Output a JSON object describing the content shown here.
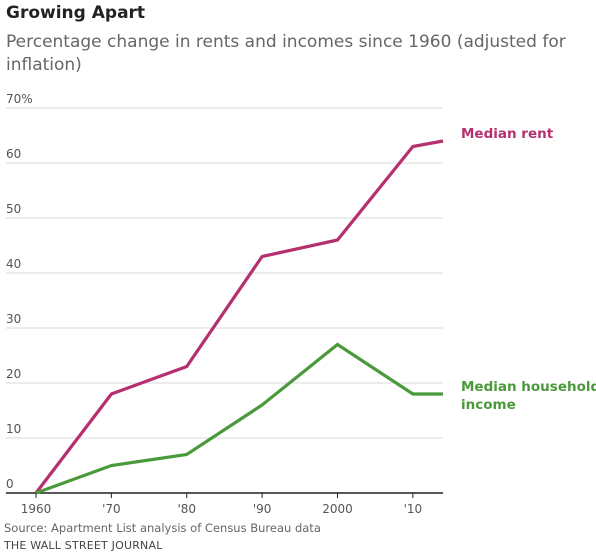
{
  "header": {
    "title": "Growing Apart",
    "subtitle": "Percentage change in rents and incomes since 1960 (adjusted for inflation)"
  },
  "footer": {
    "source": "Source: Apartment List analysis of Census Bureau data",
    "credit": "THE WALL STREET JOURNAL"
  },
  "colors": {
    "rent": "#b5306f",
    "income": "#4a9a3c",
    "grid": "#d9d9d9",
    "axis": "#222222",
    "tick_text": "#555555"
  },
  "chart_data": {
    "type": "line",
    "title": "Growing Apart",
    "subtitle": "Percentage change in rents and incomes since 1960 (adjusted for inflation)",
    "xlabel": "",
    "ylabel": "",
    "xlim": [
      1960,
      2014
    ],
    "ylim": [
      0,
      70
    ],
    "grid": true,
    "legend": "direct labels at right end of lines",
    "x_ticks": [
      {
        "value": 1960,
        "label": "1960"
      },
      {
        "value": 1970,
        "label": "'70"
      },
      {
        "value": 1980,
        "label": "'80"
      },
      {
        "value": 1990,
        "label": "'90"
      },
      {
        "value": 2000,
        "label": "2000"
      },
      {
        "value": 2010,
        "label": "'10"
      }
    ],
    "y_ticks": [
      {
        "value": 0,
        "label": "0"
      },
      {
        "value": 10,
        "label": "10"
      },
      {
        "value": 20,
        "label": "20"
      },
      {
        "value": 30,
        "label": "30"
      },
      {
        "value": 40,
        "label": "40"
      },
      {
        "value": 50,
        "label": "50"
      },
      {
        "value": 60,
        "label": "60"
      },
      {
        "value": 70,
        "label": "70%"
      }
    ],
    "series": [
      {
        "name": "Median rent",
        "label_lines": [
          "Median rent"
        ],
        "color": "#b5306f",
        "points": [
          {
            "x": 1960,
            "y": 0
          },
          {
            "x": 1970,
            "y": 18
          },
          {
            "x": 1980,
            "y": 23
          },
          {
            "x": 1990,
            "y": 43
          },
          {
            "x": 2000,
            "y": 46
          },
          {
            "x": 2010,
            "y": 63
          },
          {
            "x": 2014,
            "y": 64
          }
        ]
      },
      {
        "name": "Median household income",
        "label_lines": [
          "Median household",
          "income"
        ],
        "color": "#4a9a3c",
        "points": [
          {
            "x": 1960,
            "y": 0
          },
          {
            "x": 1970,
            "y": 5
          },
          {
            "x": 1980,
            "y": 7
          },
          {
            "x": 1990,
            "y": 16
          },
          {
            "x": 2000,
            "y": 27
          },
          {
            "x": 2010,
            "y": 18
          },
          {
            "x": 2014,
            "y": 18
          }
        ]
      }
    ]
  }
}
